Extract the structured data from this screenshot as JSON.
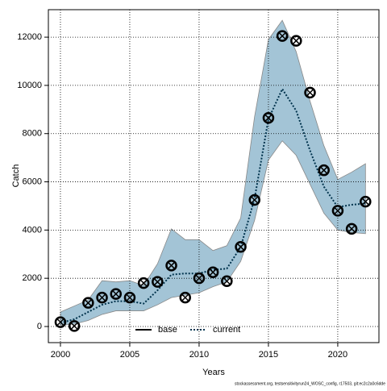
{
  "chart_data": {
    "type": "line",
    "xlabel": "Years",
    "ylabel": "Catch",
    "x": [
      2000,
      2001,
      2002,
      2003,
      2004,
      2005,
      2006,
      2007,
      2008,
      2009,
      2010,
      2011,
      2012,
      2013,
      2014,
      2015,
      2016,
      2017,
      2018,
      2019,
      2020,
      2021,
      2022
    ],
    "observed": [
      180,
      20,
      980,
      1200,
      1350,
      1200,
      1800,
      1850,
      2530,
      1200,
      2000,
      2250,
      1880,
      3300,
      5250,
      8650,
      12050,
      11850,
      9700,
      6480,
      4800,
      4050,
      5180
    ],
    "series": [
      {
        "name": "base",
        "color": "#000000",
        "values": [
          180,
          20,
          980,
          1200,
          1350,
          1200,
          1800,
          1850,
          2530,
          1200,
          2000,
          2250,
          1880,
          3300,
          5250,
          8650,
          12050,
          11850,
          9700,
          6480,
          4800,
          4050,
          5180
        ]
      },
      {
        "name": "current",
        "color": "#00334d",
        "values": [
          150,
          300,
          600,
          900,
          1050,
          1050,
          950,
          1500,
          2150,
          2200,
          2200,
          2350,
          2400,
          3300,
          5300,
          8600,
          9850,
          8950,
          7300,
          5800,
          4950,
          5050,
          5100
        ],
        "lower": [
          50,
          100,
          250,
          500,
          650,
          650,
          650,
          900,
          1200,
          1300,
          1400,
          1650,
          1850,
          2700,
          4400,
          6900,
          7700,
          7100,
          5900,
          4700,
          4000,
          3900,
          3850
        ],
        "upper": [
          600,
          850,
          1100,
          1900,
          1850,
          1900,
          1700,
          2600,
          4050,
          3600,
          3600,
          3150,
          3350,
          4500,
          8700,
          11900,
          12700,
          11400,
          9350,
          7500,
          6100,
          6400,
          6750
        ],
        "band_color": "#a3c4d6"
      }
    ],
    "xlim": [
      1999.13,
      2022.97
    ],
    "xticks": [
      2000,
      2005,
      2010,
      2015,
      2020
    ],
    "ylim": [
      -669,
      13140
    ],
    "yticks": [
      0,
      2000,
      4000,
      6000,
      8000,
      10000,
      12000
    ],
    "grid": true,
    "legend": "bottom",
    "footnote": "stockassessment.org, testsensitivityrun24_WOSC_config, r17503, git:ec2c2a0c6dde"
  }
}
